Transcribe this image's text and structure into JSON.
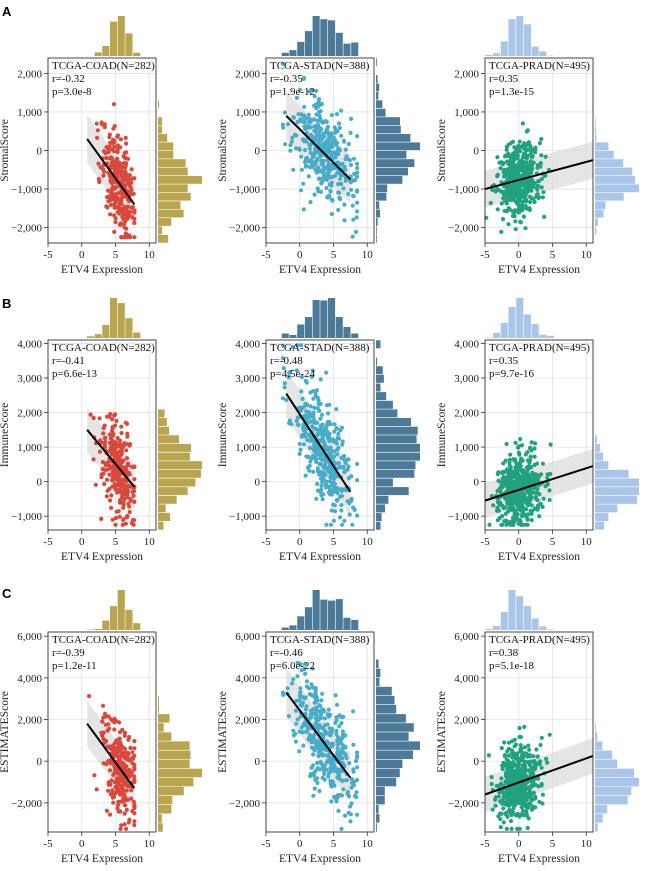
{
  "figure": {
    "rows": [
      {
        "letter": "A",
        "ylabel": "StromalScore"
      },
      {
        "letter": "B",
        "ylabel": "ImmuneScore"
      },
      {
        "letter": "C",
        "ylabel": "ESTIMATEScore"
      }
    ]
  },
  "chart_data": [
    {
      "id": "A1",
      "type": "scatter",
      "row": 0,
      "col": 0,
      "title": "TCGA-COAD(N=282)",
      "r_text": "r=-0.32",
      "p_text": "p=3.0e-8",
      "xlabel": "ETV4 Expression",
      "ylabel": "StromalScore",
      "xlim": [
        -5,
        11
      ],
      "ylim": [
        -2400,
        2400
      ],
      "xticks": [
        -5,
        0,
        5,
        10
      ],
      "yticks": [
        -2000,
        -1000,
        0,
        1000,
        2000
      ],
      "yticklabels": [
        "−2,000",
        "−1,000",
        "0",
        "1,000",
        "2,000"
      ],
      "n": 282,
      "x_center": 5.5,
      "x_sd": 1.3,
      "x_range": [
        0.5,
        7.8
      ],
      "y_sd": 620,
      "fit": {
        "x0": 0.8,
        "y0": 300,
        "x1": 7.8,
        "y1": -1400
      },
      "colors": {
        "point": "#d9483b",
        "hist": "#b9a54f",
        "band": "#dcdcdc",
        "line": "#000000"
      }
    },
    {
      "id": "A2",
      "type": "scatter",
      "row": 0,
      "col": 1,
      "title": "TCGA-STAD(N=388)",
      "r_text": "r=-0.35",
      "p_text": "p=1.9e-12",
      "xlabel": "ETV4 Expression",
      "ylabel": "StromalScore",
      "xlim": [
        -5,
        11
      ],
      "ylim": [
        -2400,
        2400
      ],
      "xticks": [
        -5,
        0,
        5,
        10
      ],
      "yticks": [
        -2000,
        -1000,
        0,
        1000,
        2000
      ],
      "yticklabels": [
        "−2,000",
        "−1,000",
        "0",
        "1,000",
        "2,000"
      ],
      "n": 388,
      "x_center": 3.5,
      "x_sd": 2.3,
      "x_range": [
        -2.5,
        8.5
      ],
      "y_sd": 620,
      "fit": {
        "x0": -2,
        "y0": 900,
        "x1": 7.5,
        "y1": -750
      },
      "colors": {
        "point": "#48acc9",
        "hist": "#4d7a98",
        "band": "#dcdcdc",
        "line": "#000000"
      }
    },
    {
      "id": "A3",
      "type": "scatter",
      "row": 0,
      "col": 2,
      "title": "TCGA-PRAD(N=495)",
      "r_text": "r=0.35",
      "p_text": "p=1.3e-15",
      "xlabel": "ETV4 Expression",
      "ylabel": "StromalScore",
      "xlim": [
        -5,
        11
      ],
      "ylim": [
        -2400,
        2400
      ],
      "xticks": [
        -5,
        0,
        5,
        10
      ],
      "yticks": [
        -2000,
        -1000,
        0,
        1000,
        2000
      ],
      "yticklabels": [
        "−2,000",
        "−1,000",
        "0",
        "1,000",
        "2,000"
      ],
      "n": 495,
      "x_center": 0,
      "x_sd": 1.6,
      "x_range": [
        -5,
        11
      ],
      "y_sd": 480,
      "fit": {
        "x0": -5,
        "y0": -1000,
        "x1": 11,
        "y1": -250
      },
      "colors": {
        "point": "#21a180",
        "hist": "#a9c6ea",
        "band": "#dcdcdc",
        "line": "#000000"
      }
    },
    {
      "id": "B1",
      "type": "scatter",
      "row": 1,
      "col": 0,
      "title": "TCGA-COAD(N=282)",
      "r_text": "r=-0.41",
      "p_text": "p=6.6e-13",
      "xlabel": "ETV4 Expression",
      "ylabel": "ImmuneScore",
      "xlim": [
        -5,
        11
      ],
      "ylim": [
        -1400,
        4100
      ],
      "xticks": [
        -5,
        0,
        5,
        10
      ],
      "yticks": [
        -1000,
        0,
        1000,
        2000,
        3000,
        4000
      ],
      "yticklabels": [
        "−1,000",
        "0",
        "1,000",
        "2,000",
        "3,000",
        "4,000"
      ],
      "n": 282,
      "x_center": 5.5,
      "x_sd": 1.3,
      "x_range": [
        0.5,
        7.8
      ],
      "y_sd": 650,
      "fit": {
        "x0": 0.8,
        "y0": 1500,
        "x1": 7.8,
        "y1": -150
      },
      "colors": {
        "point": "#d9483b",
        "hist": "#b9a54f",
        "band": "#dcdcdc",
        "line": "#000000"
      }
    },
    {
      "id": "B2",
      "type": "scatter",
      "row": 1,
      "col": 1,
      "title": "TCGA-STAD(N=388)",
      "r_text": "r=-0.48",
      "p_text": "p=4.5e-24",
      "xlabel": "ETV4 Expression",
      "ylabel": "ImmuneScore",
      "xlim": [
        -5,
        11
      ],
      "ylim": [
        -1400,
        4100
      ],
      "xticks": [
        -5,
        0,
        5,
        10
      ],
      "yticks": [
        -1000,
        0,
        1000,
        2000,
        3000,
        4000
      ],
      "yticklabels": [
        "−1,000",
        "0",
        "1,000",
        "2,000",
        "3,000",
        "4,000"
      ],
      "n": 388,
      "x_center": 3.5,
      "x_sd": 2.3,
      "x_range": [
        -2.5,
        8.5
      ],
      "y_sd": 700,
      "fit": {
        "x0": -2,
        "y0": 2550,
        "x1": 7.5,
        "y1": -300
      },
      "colors": {
        "point": "#48acc9",
        "hist": "#4d7a98",
        "band": "#dcdcdc",
        "line": "#000000"
      }
    },
    {
      "id": "B3",
      "type": "scatter",
      "row": 1,
      "col": 2,
      "title": "TCGA-PRAD(N=495)",
      "r_text": "r=0.35",
      "p_text": "p=9.7e-16",
      "xlabel": "ETV4 Expression",
      "ylabel": "ImmuneScore",
      "xlim": [
        -5,
        11
      ],
      "ylim": [
        -1400,
        4100
      ],
      "xticks": [
        -5,
        0,
        5,
        10
      ],
      "yticks": [
        -1000,
        0,
        1000,
        2000,
        3000,
        4000
      ],
      "yticklabels": [
        "−1,000",
        "0",
        "1,000",
        "2,000",
        "3,000",
        "4,000"
      ],
      "n": 495,
      "x_center": 0,
      "x_sd": 1.6,
      "x_range": [
        -5,
        11
      ],
      "y_sd": 500,
      "fit": {
        "x0": -5,
        "y0": -550,
        "x1": 11,
        "y1": 450
      },
      "colors": {
        "point": "#21a180",
        "hist": "#a9c6ea",
        "band": "#dcdcdc",
        "line": "#000000"
      }
    },
    {
      "id": "C1",
      "type": "scatter",
      "row": 2,
      "col": 0,
      "title": "TCGA-COAD(N=282)",
      "r_text": "r=-0.39",
      "p_text": "p=1.2e-11",
      "xlabel": "ETV4 Expression",
      "ylabel": "ESTIMATEScore",
      "xlim": [
        -5,
        11
      ],
      "ylim": [
        -3400,
        6200
      ],
      "xticks": [
        -5,
        0,
        5,
        10
      ],
      "yticks": [
        -2000,
        0,
        2000,
        4000,
        6000
      ],
      "yticklabels": [
        "−2,000",
        "0",
        "2,000",
        "4,000",
        "6,000"
      ],
      "n": 282,
      "x_center": 5.5,
      "x_sd": 1.3,
      "x_range": [
        0.5,
        7.8
      ],
      "y_sd": 1100,
      "fit": {
        "x0": 0.8,
        "y0": 1800,
        "x1": 7.8,
        "y1": -1300
      },
      "colors": {
        "point": "#d9483b",
        "hist": "#b9a54f",
        "band": "#dcdcdc",
        "line": "#000000"
      }
    },
    {
      "id": "C2",
      "type": "scatter",
      "row": 2,
      "col": 1,
      "title": "TCGA-STAD(N=388)",
      "r_text": "r=-0.46",
      "p_text": "p=6.0e-22",
      "xlabel": "ETV4 Expression",
      "ylabel": "ESTIMATEScore",
      "xlim": [
        -5,
        11
      ],
      "ylim": [
        -3400,
        6200
      ],
      "xticks": [
        -5,
        0,
        5,
        10
      ],
      "yticks": [
        -2000,
        0,
        2000,
        4000,
        6000
      ],
      "yticklabels": [
        "−2,000",
        "0",
        "2,000",
        "4,000",
        "6,000"
      ],
      "n": 388,
      "x_center": 3.5,
      "x_sd": 2.3,
      "x_range": [
        -2.5,
        8.5
      ],
      "y_sd": 1150,
      "fit": {
        "x0": -2,
        "y0": 3300,
        "x1": 7.5,
        "y1": -800
      },
      "colors": {
        "point": "#48acc9",
        "hist": "#4d7a98",
        "band": "#dcdcdc",
        "line": "#000000"
      }
    },
    {
      "id": "C3",
      "type": "scatter",
      "row": 2,
      "col": 2,
      "title": "TCGA-PRAD(N=495)",
      "r_text": "r=0.38",
      "p_text": "p=5.1e-18",
      "xlabel": "ETV4 Expression",
      "ylabel": "ESTIMATEScore",
      "xlim": [
        -5,
        11
      ],
      "ylim": [
        -3400,
        6200
      ],
      "xticks": [
        -5,
        0,
        5,
        10
      ],
      "yticks": [
        -2000,
        0,
        2000,
        4000,
        6000
      ],
      "yticklabels": [
        "−2,000",
        "0",
        "2,000",
        "4,000",
        "6,000"
      ],
      "n": 495,
      "x_center": 0,
      "x_sd": 1.6,
      "x_range": [
        -5,
        11
      ],
      "y_sd": 850,
      "fit": {
        "x0": -5,
        "y0": -1600,
        "x1": 11,
        "y1": 250
      },
      "colors": {
        "point": "#21a180",
        "hist": "#a9c6ea",
        "band": "#dcdcdc",
        "line": "#000000"
      }
    }
  ]
}
